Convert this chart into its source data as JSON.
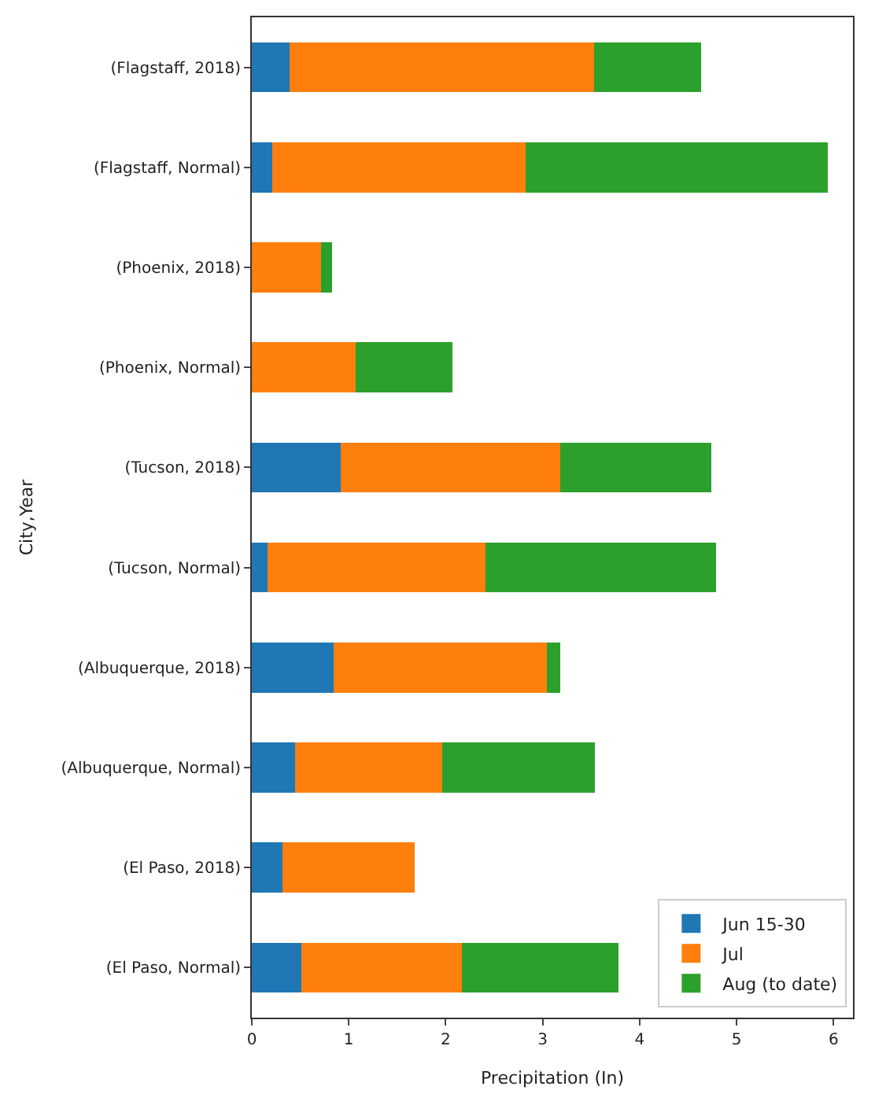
{
  "chart_data": {
    "type": "bar",
    "orientation": "horizontal",
    "stacked": true,
    "xlabel": "Precipitation (In)",
    "ylabel": "City,Year",
    "categories": [
      "(Flagstaff, 2018)",
      "(Flagstaff, Normal)",
      "(Phoenix, 2018)",
      "(Phoenix, Normal)",
      "(Tucson, 2018)",
      "(Tucson, Normal)",
      "(Albuquerque, 2018)",
      "(Albuquerque, Normal)",
      "(El Paso, 2018)",
      "(El Paso, Normal)"
    ],
    "series": [
      {
        "name": "Jun 15-30",
        "color": "#1f77b4",
        "values": [
          0.39,
          0.21,
          0,
          0,
          0.92,
          0.16,
          0.84,
          0.45,
          0.32,
          0.51
        ]
      },
      {
        "name": "Jul",
        "color": "#ff7f0e",
        "values": [
          3.14,
          2.61,
          0.71,
          1.07,
          2.26,
          2.25,
          2.2,
          1.51,
          1.36,
          1.66
        ]
      },
      {
        "name": "Aug (to date)",
        "color": "#2ca02c",
        "values": [
          1.1,
          3.12,
          0.12,
          1.0,
          1.56,
          2.38,
          0.14,
          1.58,
          0,
          1.61
        ]
      }
    ],
    "xlim": [
      0,
      6.2
    ],
    "xticks": [
      0,
      1,
      2,
      3,
      4,
      5,
      6
    ],
    "legend": "bottom right"
  }
}
